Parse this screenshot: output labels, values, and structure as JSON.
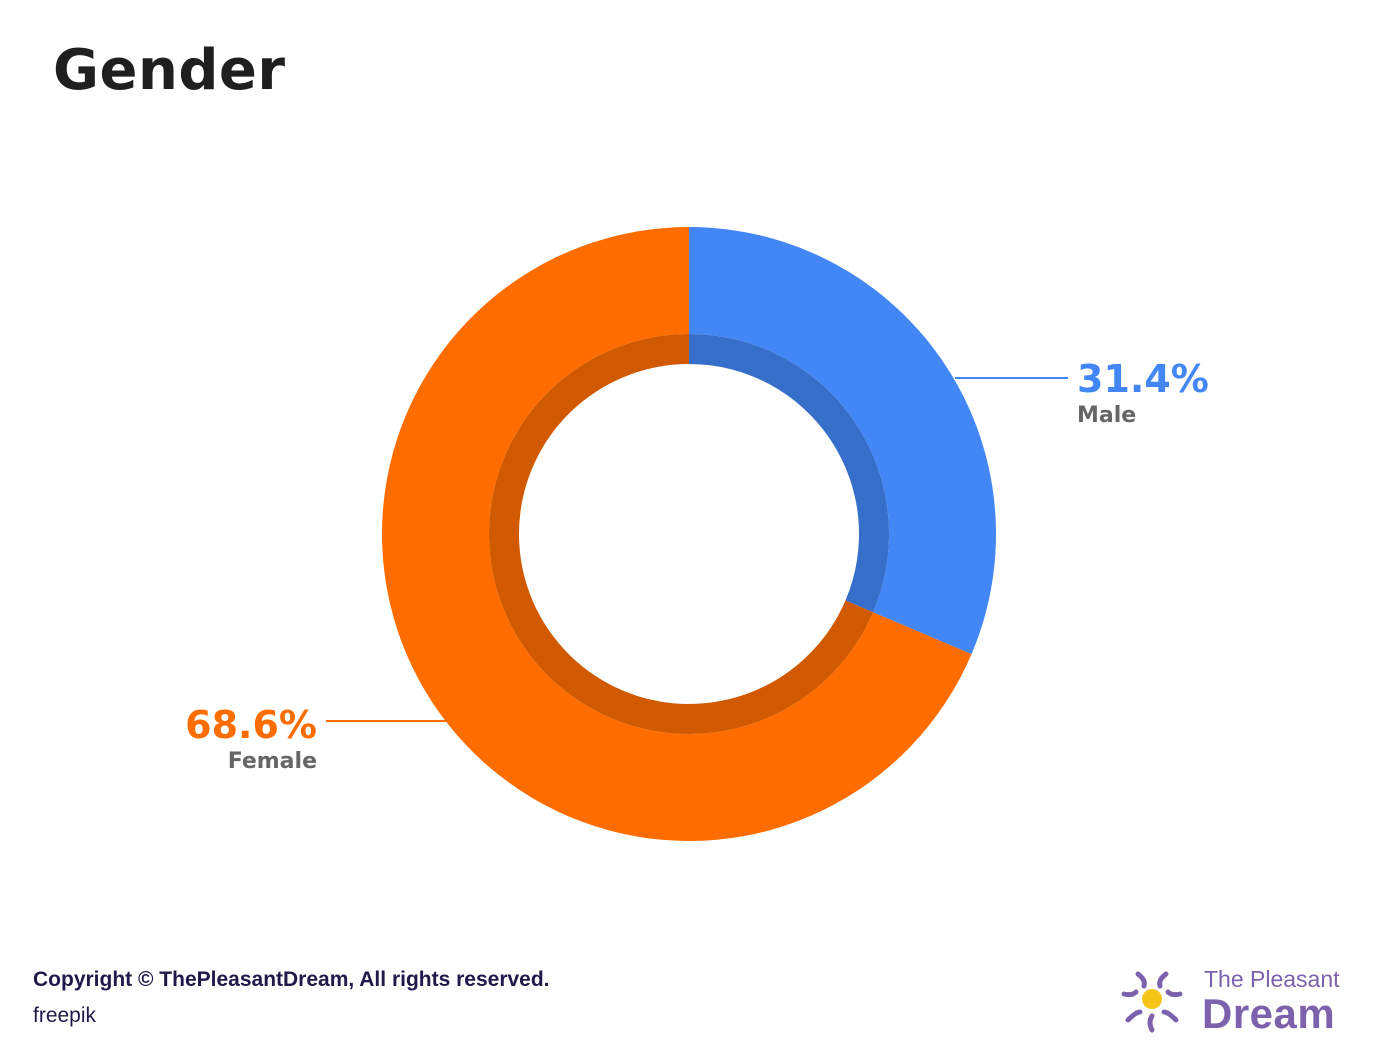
{
  "title": "Gender",
  "chart_data": {
    "type": "pie",
    "donut": true,
    "title": "Gender",
    "slices": [
      {
        "label": "Male",
        "value": 31.4,
        "value_label": "31.4%",
        "color": "#4287f5",
        "label_side": "right"
      },
      {
        "label": "Female",
        "value": 68.6,
        "value_label": "68.6%",
        "color": "#ff6d00",
        "label_side": "left"
      }
    ],
    "label_color": "#666666",
    "start_angle": "12 o'clock",
    "direction": "clockwise"
  },
  "footer": {
    "copyright": "Copyright © ThePleasantDream, All rights reserved.",
    "credit": "freepik"
  },
  "logo": {
    "line1": "The Pleasant",
    "line2": "Dream",
    "color": "#7c62ad",
    "sun_color": "#f5c518"
  }
}
